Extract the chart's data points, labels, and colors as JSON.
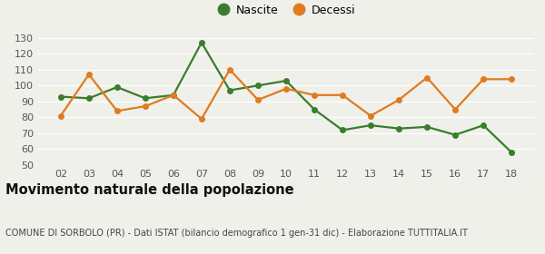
{
  "years": [
    "02",
    "03",
    "04",
    "05",
    "06",
    "07",
    "08",
    "09",
    "10",
    "11",
    "12",
    "13",
    "14",
    "15",
    "16",
    "17",
    "18"
  ],
  "nascite": [
    93,
    92,
    99,
    92,
    94,
    127,
    97,
    100,
    103,
    85,
    72,
    75,
    73,
    74,
    69,
    75,
    58
  ],
  "decessi": [
    81,
    107,
    84,
    87,
    94,
    79,
    110,
    91,
    98,
    94,
    94,
    81,
    91,
    105,
    85,
    104,
    104
  ],
  "nascite_color": "#3a7d2c",
  "decessi_color": "#e07b20",
  "background_color": "#f0f0eb",
  "grid_color": "#ffffff",
  "title": "Movimento naturale della popolazione",
  "subtitle": "COMUNE DI SORBOLO (PR) - Dati ISTAT (bilancio demografico 1 gen-31 dic) - Elaborazione TUTTITALIA.IT",
  "legend_nascite": "Nascite",
  "legend_decessi": "Decessi",
  "ylim_min": 50,
  "ylim_max": 133,
  "yticks": [
    50,
    60,
    70,
    80,
    90,
    100,
    110,
    120,
    130
  ],
  "marker_size": 4,
  "line_width": 1.6,
  "title_fontsize": 10.5,
  "subtitle_fontsize": 7,
  "tick_fontsize": 8,
  "legend_fontsize": 9
}
